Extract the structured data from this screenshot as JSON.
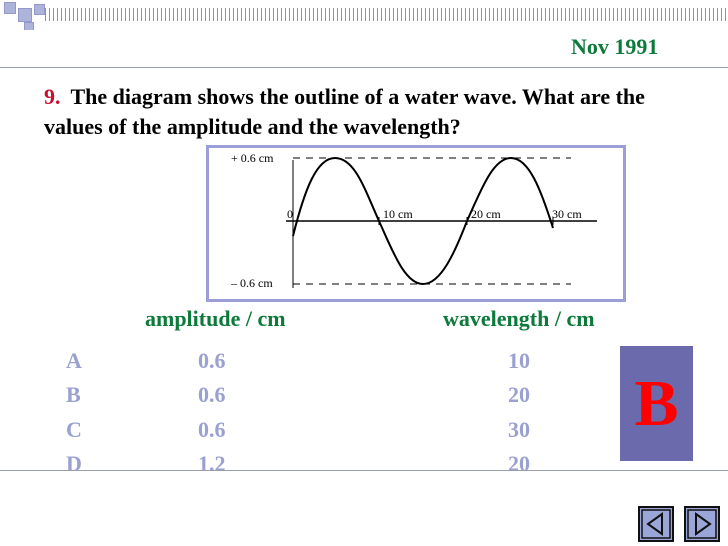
{
  "header": {
    "date": "Nov 1991"
  },
  "question": {
    "number": "9.",
    "text": "The diagram shows the outline of a water wave. What are the values of the amplitude and the wavelength?"
  },
  "diagram": {
    "labels": {
      "top": "+ 0.6 cm",
      "bottom": "– 0.6 cm",
      "origin": "0",
      "x1": "10 cm",
      "x2": "20 cm",
      "x3": "30 cm"
    },
    "stroke_color": "#000000",
    "border_color": "#9c9fd6"
  },
  "table": {
    "headers": {
      "amplitude": "amplitude / cm",
      "wavelength": "wavelength / cm"
    },
    "rows": [
      {
        "option": "A",
        "amplitude": "0.6",
        "wavelength": "10"
      },
      {
        "option": "B",
        "amplitude": "0.6",
        "wavelength": "20"
      },
      {
        "option": "C",
        "amplitude": "0.6",
        "wavelength": "30"
      },
      {
        "option": "D",
        "amplitude": "1.2",
        "wavelength": "20"
      }
    ]
  },
  "answer": {
    "letter": "B"
  },
  "nav": {
    "prev_icon": "triangle-left-icon",
    "next_icon": "triangle-right-icon"
  },
  "colors": {
    "title_green": "#0d7a3b",
    "number_red": "#c8102e",
    "option_text": "#9aa0d0",
    "answer_box": "#6a6aac",
    "answer_letter": "#ff0000"
  }
}
